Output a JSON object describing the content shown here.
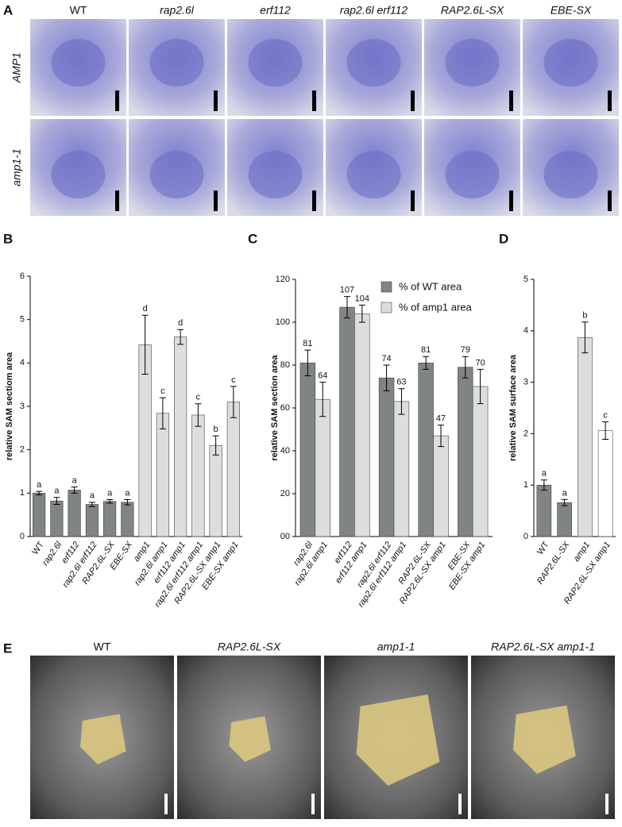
{
  "panel_labels": [
    "A",
    "B",
    "C",
    "D",
    "E"
  ],
  "panel_a": {
    "columns": [
      "WT",
      "rap2.6l",
      "erf112",
      "rap2.6l  erf112",
      "RAP2.6L-SX",
      "EBE-SX"
    ],
    "rows": [
      "AMP1",
      "amp1-1"
    ]
  },
  "panel_e": {
    "columns": [
      "WT",
      "RAP2.6L-SX",
      "amp1-1",
      "RAP2.6L-SX  amp1-1"
    ]
  },
  "chart_data": [
    {
      "type": "bar",
      "ylabel": "relative SAM sectiom area",
      "categories": [
        "WT",
        "rap2.6l",
        "erf112",
        "rap2.6l erf112",
        "RAP2.6L-SX",
        "EBE-SX",
        "amp1",
        "rap2.6l amp1",
        "erf112 amp1",
        "rap2.6l erf112 amp1",
        "RAP2.6L-SX amp1",
        "EBE-SX amp1"
      ],
      "values": [
        1.0,
        0.82,
        1.07,
        0.74,
        0.81,
        0.79,
        4.42,
        2.84,
        4.6,
        2.8,
        2.1,
        3.1
      ],
      "errors": [
        0.04,
        0.08,
        0.07,
        0.05,
        0.04,
        0.06,
        0.68,
        0.36,
        0.17,
        0.26,
        0.22,
        0.36
      ],
      "group_labels": [
        "a",
        "a",
        "a",
        "a",
        "a",
        "a",
        "d",
        "c",
        "d",
        "c",
        "b",
        "c"
      ],
      "colors": [
        "#808483",
        "#808483",
        "#808483",
        "#808483",
        "#808483",
        "#808483",
        "#dcdedd",
        "#dcdedd",
        "#dcdedd",
        "#dcdedd",
        "#dcdedd",
        "#dcdedd"
      ],
      "ylim": [
        0,
        6
      ],
      "yticks": [
        0,
        1,
        2,
        3,
        4,
        5,
        6
      ]
    },
    {
      "type": "grouped-bar",
      "ylabel": "relative SAM section area",
      "categories": [
        [
          "rap2.6l",
          "rap2.6l amp1"
        ],
        [
          "erf112",
          "erf112 amp1"
        ],
        [
          "rap2.6l erf112",
          "rap2.6l erf112 amp1"
        ],
        [
          "RAP2.6L-SX",
          "RAP2.6L-SX amp1"
        ],
        [
          "EBE-SX",
          "EBE-SX amp1"
        ]
      ],
      "series": [
        {
          "name": "% of WT area",
          "color": "#808483",
          "values": [
            81,
            107,
            74,
            81,
            79
          ],
          "errors": [
            6,
            5,
            6,
            3,
            5
          ]
        },
        {
          "name": "% of amp1 area",
          "color": "#dcdedd",
          "values": [
            64,
            104,
            63,
            47,
            70
          ],
          "errors": [
            8,
            4,
            6,
            5,
            8
          ]
        }
      ],
      "legend": "top-right",
      "ylim": [
        0,
        120
      ],
      "yticks": [
        {
          "value": 0,
          "label": "00"
        },
        20,
        40,
        60,
        80,
        100,
        120
      ]
    },
    {
      "type": "bar",
      "ylabel": "relative SAM surface area",
      "categories": [
        "WT",
        "RAP2.6L-SX",
        "amp1",
        "RAP2.6L-SX amp1"
      ],
      "values": [
        1.0,
        0.66,
        3.87,
        2.06
      ],
      "errors": [
        0.1,
        0.06,
        0.3,
        0.17
      ],
      "group_labels": [
        "a",
        "a",
        "b",
        "c"
      ],
      "colors": [
        "#808483",
        "#808483",
        "#dcdedd",
        "#ffffff"
      ],
      "ylim": [
        0,
        5
      ],
      "yticks": [
        0,
        1,
        2,
        3,
        4,
        5
      ]
    }
  ]
}
